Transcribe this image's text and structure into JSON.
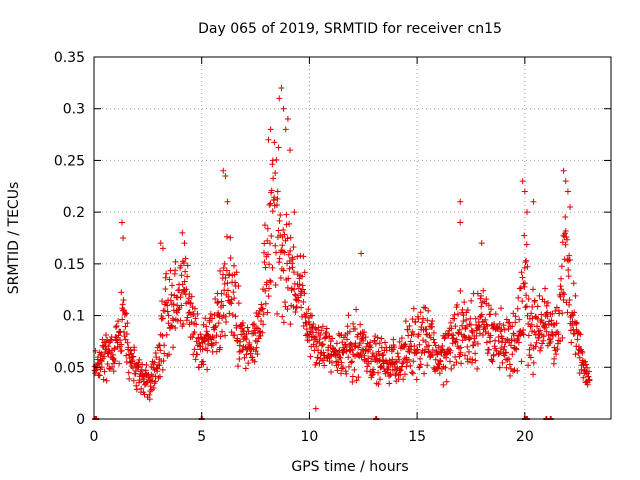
{
  "chart_data": {
    "type": "scatter",
    "title": "Day 065 of 2019, SRMTID for receiver cn15",
    "xlabel": "GPS time / hours",
    "ylabel": "SRMTID / TECUs",
    "xlim": [
      0,
      24
    ],
    "ylim": [
      0,
      0.35
    ],
    "xticks": [
      0,
      5,
      10,
      15,
      20
    ],
    "xtick_labels": [
      "0",
      "5",
      "10",
      "15",
      "20"
    ],
    "yticks": [
      0,
      0.05,
      0.1,
      0.15,
      0.2,
      0.25,
      0.3,
      0.35
    ],
    "ytick_labels": [
      "0",
      "0.05",
      "0.1",
      "0.15",
      "0.2",
      "0.25",
      "0.3",
      "0.35"
    ],
    "grid": true,
    "marker": "+",
    "series": [
      {
        "name": "SRMTID",
        "color": "#e00000",
        "marker": "+",
        "trend": {
          "x": [
            0,
            0.5,
            1,
            1.3,
            1.6,
            2,
            2.5,
            3,
            3.3,
            3.8,
            4.2,
            4.6,
            5,
            5.5,
            6,
            6.3,
            6.8,
            7.2,
            7.6,
            8,
            8.3,
            8.7,
            9,
            9.3,
            9.7,
            10,
            10.5,
            11,
            11.5,
            12,
            12.5,
            13,
            13.5,
            14,
            14.5,
            15,
            15.5,
            16,
            16.5,
            17,
            17.5,
            18,
            18.5,
            19,
            19.5,
            20,
            20.5,
            21,
            21.5,
            21.9,
            22.3,
            22.7,
            23
          ],
          "y": [
            0.045,
            0.06,
            0.065,
            0.1,
            0.06,
            0.045,
            0.035,
            0.055,
            0.1,
            0.11,
            0.13,
            0.09,
            0.07,
            0.08,
            0.11,
            0.13,
            0.09,
            0.06,
            0.085,
            0.14,
            0.2,
            0.17,
            0.15,
            0.14,
            0.12,
            0.085,
            0.07,
            0.065,
            0.06,
            0.075,
            0.07,
            0.06,
            0.055,
            0.055,
            0.065,
            0.075,
            0.085,
            0.055,
            0.07,
            0.09,
            0.08,
            0.095,
            0.085,
            0.075,
            0.07,
            0.12,
            0.08,
            0.1,
            0.08,
            0.16,
            0.09,
            0.05,
            0.035
          ],
          "spread": [
            0.015,
            0.02,
            0.025,
            0.04,
            0.02,
            0.015,
            0.015,
            0.02,
            0.04,
            0.035,
            0.03,
            0.03,
            0.02,
            0.03,
            0.05,
            0.045,
            0.035,
            0.02,
            0.03,
            0.06,
            0.08,
            0.08,
            0.06,
            0.04,
            0.035,
            0.025,
            0.02,
            0.02,
            0.02,
            0.035,
            0.025,
            0.02,
            0.02,
            0.02,
            0.025,
            0.03,
            0.03,
            0.02,
            0.03,
            0.04,
            0.03,
            0.035,
            0.03,
            0.025,
            0.03,
            0.06,
            0.03,
            0.03,
            0.03,
            0.06,
            0.035,
            0.015,
            0.01
          ]
        },
        "highlights": {
          "x": [
            1.3,
            1.3,
            1.35,
            3.1,
            3.2,
            4.1,
            4.2,
            6.0,
            6.1,
            6.2,
            8.1,
            8.2,
            8.3,
            8.6,
            8.7,
            8.8,
            8.9,
            9.0,
            9.1,
            9.3,
            10.3,
            12.4,
            17.0,
            17.0,
            18.0,
            19.9,
            20.0,
            20.1,
            20.4,
            21.8,
            21.9,
            22.0,
            22.1
          ],
          "y": [
            0.19,
            0.19,
            0.175,
            0.17,
            0.165,
            0.18,
            0.17,
            0.24,
            0.235,
            0.21,
            0.27,
            0.28,
            0.25,
            0.31,
            0.32,
            0.3,
            0.28,
            0.29,
            0.26,
            0.2,
            0.01,
            0.16,
            0.21,
            0.19,
            0.17,
            0.23,
            0.22,
            0.2,
            0.21,
            0.24,
            0.23,
            0.22,
            0.205
          ]
        },
        "zeros": {
          "x": [
            0.05,
            0.1,
            5.0,
            13.1,
            20.0,
            20.1,
            21.0,
            21.2
          ],
          "y": [
            0,
            0,
            0,
            0,
            0,
            0,
            0,
            0
          ]
        }
      }
    ]
  }
}
